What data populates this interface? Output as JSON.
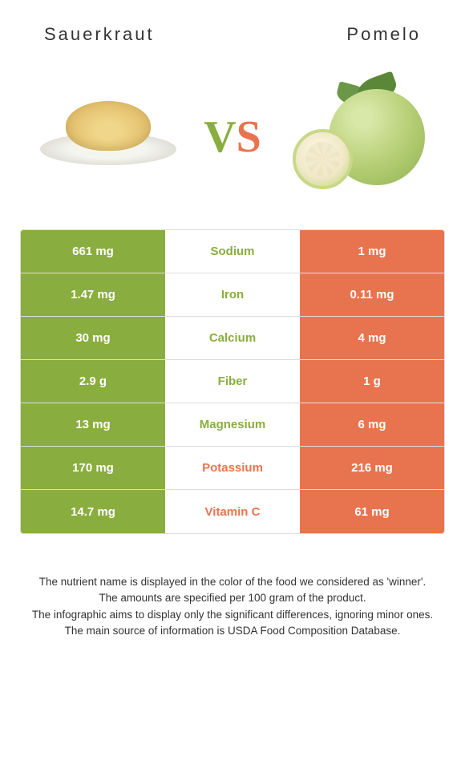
{
  "left_food": "Sauerkraut",
  "right_food": "Pomelo",
  "colors": {
    "left": "#8aad3f",
    "right": "#e8744f"
  },
  "rows": [
    {
      "nutrient": "Sodium",
      "left": "661 mg",
      "right": "1 mg",
      "winner": "left"
    },
    {
      "nutrient": "Iron",
      "left": "1.47 mg",
      "right": "0.11 mg",
      "winner": "left"
    },
    {
      "nutrient": "Calcium",
      "left": "30 mg",
      "right": "4 mg",
      "winner": "left"
    },
    {
      "nutrient": "Fiber",
      "left": "2.9 g",
      "right": "1 g",
      "winner": "left"
    },
    {
      "nutrient": "Magnesium",
      "left": "13 mg",
      "right": "6 mg",
      "winner": "left"
    },
    {
      "nutrient": "Potassium",
      "left": "170 mg",
      "right": "216 mg",
      "winner": "right"
    },
    {
      "nutrient": "Vitamin C",
      "left": "14.7 mg",
      "right": "61 mg",
      "winner": "right"
    }
  ],
  "footer": [
    "The nutrient name is displayed in the color of the food we considered as 'winner'.",
    "The amounts are specified per 100 gram of the product.",
    "The infographic aims to display only the significant differences, ignoring minor ones.",
    "The main source of information is USDA Food Composition Database."
  ]
}
